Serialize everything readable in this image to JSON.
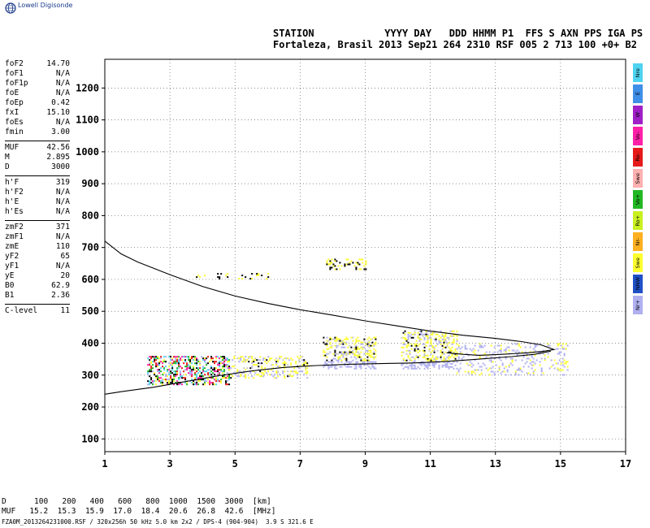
{
  "brand": "Lowell Digisonde",
  "header": {
    "line1": "STATION            YYYY DAY   DDD HHMM P1  FFS S AXN PPS IGA PS",
    "line2": "Fortaleza, Brasil 2013 Sep21 264 2310 RSF 005 2 713 100 +0+ B2"
  },
  "params": {
    "group1": [
      {
        "name": "foF2",
        "value": "14.70"
      },
      {
        "name": "foF1",
        "value": "N/A"
      },
      {
        "name": "foF1p",
        "value": "N/A"
      },
      {
        "name": "foE",
        "value": "N/A"
      },
      {
        "name": "foEp",
        "value": "0.42"
      },
      {
        "name": "fxI",
        "value": "15.10"
      },
      {
        "name": "foEs",
        "value": "N/A"
      },
      {
        "name": "fmin",
        "value": "3.00"
      }
    ],
    "group2": [
      {
        "name": "MUF",
        "value": "42.56"
      },
      {
        "name": "M",
        "value": "2.895"
      },
      {
        "name": "D",
        "value": "3000"
      }
    ],
    "group3": [
      {
        "name": "h'F",
        "value": "319"
      },
      {
        "name": "h'F2",
        "value": "N/A"
      },
      {
        "name": "h'E",
        "value": "N/A"
      },
      {
        "name": "h'Es",
        "value": "N/A"
      }
    ],
    "group4": [
      {
        "name": "zmF2",
        "value": "371"
      },
      {
        "name": "zmF1",
        "value": "N/A"
      },
      {
        "name": "zmE",
        "value": "110"
      },
      {
        "name": "yF2",
        "value": "65"
      },
      {
        "name": "yF1",
        "value": "N/A"
      },
      {
        "name": "yE",
        "value": "20"
      },
      {
        "name": "B0",
        "value": "62.9"
      },
      {
        "name": "B1",
        "value": "2.36"
      }
    ],
    "group5": [
      {
        "name": "C-level",
        "value": "11"
      }
    ]
  },
  "legend": [
    {
      "label": "Nre",
      "color": "#4fd3f0"
    },
    {
      "label": "E",
      "color": "#3f8fe8"
    },
    {
      "label": "W",
      "color": "#a020c8"
    },
    {
      "label": "Vo-",
      "color": "#ff20a8"
    },
    {
      "label": "Ro-",
      "color": "#e61a1a"
    },
    {
      "label": "Swe",
      "color": "#ffb0b0"
    },
    {
      "label": "Vo+",
      "color": "#22b822"
    },
    {
      "label": "Ro+",
      "color": "#c8f020"
    },
    {
      "label": "Nr-",
      "color": "#ffb020"
    },
    {
      "label": "Swe",
      "color": "#ffff30"
    },
    {
      "label": "NNW",
      "color": "#2050c8"
    },
    {
      "label": "Nr+",
      "color": "#b0b0f0"
    }
  ],
  "muf_table": {
    "d_label": "D",
    "d_values": [
      "100",
      "200",
      "400",
      "600",
      "800",
      "1000",
      "1500",
      "3000"
    ],
    "d_unit": "[km]",
    "muf_label": "MUF",
    "muf_values": [
      "15.2",
      "15.3",
      "15.9",
      "17.0",
      "18.4",
      "20.6",
      "26.8",
      "42.6"
    ],
    "muf_unit": "[MHz]"
  },
  "footer": "FZA0M_2013264231000.RSF / 320x256h 50 kHz 5.0 km 2x2 / DPS-4 (904-904)  3.9 S 321.6 E",
  "chart_data": {
    "type": "scatter",
    "title": "",
    "xlabel": "",
    "ylabel": "",
    "xlim": [
      1,
      17
    ],
    "ylim": [
      60,
      1290
    ],
    "x_ticks": [
      1,
      3,
      5,
      7,
      9,
      11,
      13,
      15,
      17
    ],
    "y_ticks": [
      100,
      200,
      300,
      400,
      500,
      600,
      700,
      800,
      900,
      1000,
      1100,
      1200
    ],
    "grid": true,
    "profile_curve": {
      "x": [
        1.0,
        1.5,
        2.5,
        3.5,
        4.5,
        5.5,
        6.5,
        7.5,
        8.5,
        9.5,
        10.5,
        11.5,
        12.5,
        13.5,
        14.2,
        14.7
      ],
      "y": [
        240,
        248,
        262,
        280,
        298,
        313,
        324,
        330,
        334,
        336,
        338,
        343,
        350,
        358,
        365,
        375
      ]
    },
    "trace_curve": {
      "x": [
        1.0,
        1.5,
        2.0,
        3.0,
        4.0,
        5.0,
        6.0,
        7.0,
        8.0,
        9.0,
        10.0,
        11.0,
        12.0,
        13.0,
        13.8,
        14.4,
        14.8,
        14.5,
        14.0,
        13.2,
        12.5,
        12.0,
        11.5
      ],
      "y": [
        720,
        680,
        655,
        615,
        578,
        548,
        525,
        505,
        488,
        470,
        454,
        438,
        425,
        415,
        405,
        395,
        380,
        375,
        370,
        365,
        362,
        365,
        370
      ]
    },
    "echo_clusters": [
      {
        "x": [
          2.3,
          4.8
        ],
        "y": [
          270,
          360
        ],
        "density": 0.9
      },
      {
        "x": [
          4.8,
          7.2
        ],
        "y": [
          290,
          360
        ],
        "density": 0.55
      },
      {
        "x": [
          7.7,
          9.3
        ],
        "y": [
          320,
          420
        ],
        "density": 0.8
      },
      {
        "x": [
          10.1,
          11.8
        ],
        "y": [
          320,
          440
        ],
        "density": 0.7
      },
      {
        "x": [
          11.8,
          15.2
        ],
        "y": [
          300,
          400
        ],
        "density": 0.35
      },
      {
        "x": [
          7.8,
          9.0
        ],
        "y": [
          630,
          665
        ],
        "density": 0.5
      },
      {
        "x": [
          3.8,
          6.0
        ],
        "y": [
          600,
          620
        ],
        "density": 0.3
      }
    ],
    "echo_colors": [
      "#ffff30",
      "#b0b0f0",
      "#e61a1a",
      "#000000",
      "#4fd3f0",
      "#22b822",
      "#ff20a8",
      "#ffb020",
      "#c8c8c8"
    ]
  }
}
